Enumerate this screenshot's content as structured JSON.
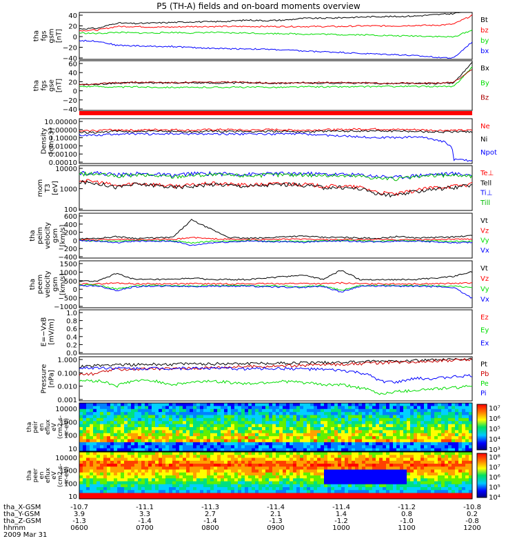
{
  "title": "P5 (TH-A) fields and on-board moments overview",
  "chart_data": {
    "type": "line",
    "x_axis": {
      "label_hhmm": "hhmm",
      "ticks_hhmm": [
        "0600",
        "0700",
        "0800",
        "0900",
        "1000",
        "1100",
        "1200"
      ],
      "rows": [
        {
          "label": "tha_X-GSM",
          "values": [
            "-10.7",
            "-11.1",
            "-11.3",
            "-11.4",
            "-11.4",
            "-11.2",
            "-10.8"
          ]
        },
        {
          "label": "tha_Y-GSM",
          "values": [
            "3.9",
            "3.3",
            "2.7",
            "2.1",
            "1.4",
            "0.8",
            "0.2"
          ]
        },
        {
          "label": "tha_Z-GSM",
          "values": [
            "-1.3",
            "-1.4",
            "-1.4",
            "-1.3",
            "-1.2",
            "-1.0",
            "-0.8"
          ]
        }
      ],
      "date": "2009 Mar 31"
    },
    "panels": [
      {
        "id": "fgs_gsm",
        "ylabel": [
          "tha",
          "fgs",
          "gsm",
          "[nT]"
        ],
        "ylim": [
          -40,
          40
        ],
        "yticks": [
          "40",
          "20",
          "0",
          "−20",
          "−40"
        ],
        "series": [
          {
            "name": "Bt",
            "color": "#000000",
            "values": [
              12,
              13,
              22,
              21,
              22,
              23,
              24,
              24,
              25,
              27,
              26,
              27,
              30,
              30,
              31,
              32,
              33,
              33,
              34,
              36,
              38,
              44
            ]
          },
          {
            "name": "bz",
            "color": "#ff0000",
            "values": [
              9,
              10,
              16,
              16,
              15,
              15,
              16,
              16,
              16,
              16,
              16,
              16,
              16,
              16,
              16,
              17,
              17,
              17,
              18,
              18,
              20,
              35
            ]
          },
          {
            "name": "by",
            "color": "#00dd00",
            "values": [
              5,
              4,
              6,
              5,
              5,
              6,
              5,
              6,
              5,
              5,
              4,
              4,
              3,
              3,
              2,
              2,
              1,
              0,
              0,
              -1,
              -2,
              10
            ]
          },
          {
            "name": "bx",
            "color": "#0000ff",
            "values": [
              -8,
              -9,
              -16,
              -17,
              -18,
              -18,
              -20,
              -21,
              -22,
              -22,
              -23,
              -24,
              -26,
              -27,
              -28,
              -30,
              -31,
              -32,
              -34,
              -36,
              -38,
              -10
            ]
          }
        ]
      },
      {
        "id": "fgs_gse",
        "ylabel": [
          "tha",
          "fgs",
          "gse",
          "[nT]"
        ],
        "ylim": [
          -60,
          60
        ],
        "yticks": [
          "60",
          "40",
          "20",
          "0",
          "−20",
          "−40"
        ],
        "series": [
          {
            "name": "Bx",
            "color": "#000000",
            "values": [
              2,
              3,
              6,
              7,
              6,
              7,
              7,
              6,
              6,
              7,
              6,
              6,
              6,
              6,
              6,
              6,
              5,
              5,
              5,
              5,
              6,
              55
            ]
          },
          {
            "name": "By",
            "color": "#00dd00",
            "values": [
              -2,
              -2,
              -4,
              -3,
              -4,
              -4,
              -5,
              -4,
              -4,
              -4,
              -4,
              -4,
              -3,
              -3,
              -3,
              -3,
              -2,
              -2,
              -2,
              -2,
              -3,
              45
            ]
          },
          {
            "name": "Bz",
            "color": "#aa0000",
            "values": [
              3,
              4,
              7,
              8,
              8,
              7,
              8,
              8,
              8,
              8,
              7,
              7,
              7,
              7,
              7,
              7,
              6,
              6,
              6,
              6,
              7,
              40
            ]
          }
        ]
      },
      {
        "id": "density",
        "ylabel": [
          "Density",
          "[cm−3]"
        ],
        "log": true,
        "ylim": [
          0.0001,
          10
        ],
        "yticks": [
          "10.00000",
          "1.00000",
          "0.10000",
          "0.01000",
          "0.00100",
          "0.00010"
        ],
        "series": [
          {
            "name": "Ne",
            "color": "#ff0000",
            "values": [
              0.4,
              0.5,
              0.6,
              0.5,
              0.6,
              0.6,
              0.5,
              0.6,
              0.6,
              0.5,
              0.6,
              0.6,
              0.5,
              0.6,
              0.6,
              0.7,
              0.7,
              0.6,
              0.6,
              0.5,
              0.5,
              0.5
            ]
          },
          {
            "name": "Ni",
            "color": "#000000",
            "values": [
              0.3,
              0.3,
              0.4,
              0.35,
              0.4,
              0.4,
              0.35,
              0.4,
              0.4,
              0.35,
              0.4,
              0.4,
              0.35,
              0.4,
              0.4,
              0.45,
              0.45,
              0.4,
              0.4,
              0.35,
              0.35,
              0.35
            ]
          },
          {
            "name": "Npot",
            "color": "#0000ff",
            "values": [
              0.15,
              0.15,
              0.2,
              0.2,
              0.2,
              0.2,
              0.2,
              0.2,
              0.2,
              0.2,
              0.2,
              0.2,
              0.2,
              0.15,
              0.12,
              0.1,
              0.08,
              0.08,
              0.1,
              0.05,
              0.0003,
              0.0002
            ]
          }
        ]
      },
      {
        "id": "temperature",
        "ylabel": [
          "mom",
          "T3",
          "[eV]"
        ],
        "log": true,
        "ylim": [
          30,
          10000
        ],
        "yticks": [
          "10000",
          "1000",
          "100"
        ],
        "series": [
          {
            "name": "Te⊥",
            "color": "#ff0000",
            "values": [
              1500,
              1200,
              700,
              1000,
              900,
              700,
              800,
              1000,
              900,
              800,
              900,
              1000,
              900,
              700,
              700,
              600,
              300,
              250,
              400,
              600,
              700,
              900
            ]
          },
          {
            "name": "Tell",
            "color": "#000000",
            "values": [
              1200,
              1000,
              600,
              900,
              800,
              600,
              700,
              900,
              800,
              700,
              800,
              900,
              800,
              600,
              600,
              500,
              250,
              200,
              350,
              500,
              600,
              800
            ]
          },
          {
            "name": "Ti⊥",
            "color": "#0000ff",
            "values": [
              4000,
              3800,
              3000,
              3500,
              3200,
              2800,
              3500,
              3600,
              3400,
              3200,
              3400,
              3600,
              3600,
              3300,
              3200,
              3000,
              2500,
              2200,
              2800,
              3300,
              3500,
              3000
            ]
          },
          {
            "name": "Till",
            "color": "#00bb00",
            "values": [
              3500,
              3300,
              2500,
              3000,
              2800,
              2400,
              3000,
              3100,
              2900,
              2800,
              3000,
              3100,
              3100,
              2900,
              2700,
              2600,
              2000,
              1800,
              2300,
              2800,
              3000,
              2500
            ]
          }
        ]
      },
      {
        "id": "peim_velocity",
        "ylabel": [
          "tha",
          "peim",
          "velocity",
          "gsm",
          "[km/s]"
        ],
        "ylim": [
          -400,
          600
        ],
        "yticks": [
          "600",
          "400",
          "200",
          "0",
          "−200",
          "−400"
        ],
        "series": [
          {
            "name": "Vt",
            "color": "#000000",
            "values": [
              30,
              40,
              80,
              40,
              50,
              60,
              450,
              250,
              60,
              40,
              50,
              80,
              90,
              60,
              60,
              50,
              40,
              80,
              50,
              60,
              70,
              100
            ]
          },
          {
            "name": "Vz",
            "color": "#ff0000",
            "values": [
              10,
              10,
              20,
              10,
              15,
              10,
              60,
              30,
              20,
              10,
              15,
              20,
              20,
              10,
              10,
              10,
              15,
              10,
              10,
              15,
              20,
              20
            ]
          },
          {
            "name": "Vy",
            "color": "#00dd00",
            "values": [
              -10,
              -20,
              -30,
              -10,
              -20,
              -10,
              -60,
              -30,
              -20,
              -10,
              -20,
              -20,
              -30,
              -10,
              -10,
              -10,
              -20,
              -10,
              -10,
              -20,
              -30,
              -20
            ]
          },
          {
            "name": "Vx",
            "color": "#0000ff",
            "values": [
              -10,
              -20,
              -60,
              -20,
              -30,
              -20,
              -120,
              -60,
              -40,
              -20,
              -30,
              -40,
              -50,
              -20,
              -20,
              -30,
              -40,
              -20,
              -20,
              -40,
              -60,
              -50
            ]
          }
        ]
      },
      {
        "id": "peem_velocity",
        "ylabel": [
          "tha",
          "peem",
          "velocity",
          "gsm",
          "[km/s]"
        ],
        "ylim": [
          -1500,
          1500
        ],
        "yticks": [
          "1500",
          "1000",
          "500",
          "0",
          "−500",
          "−1000"
        ],
        "series": [
          {
            "name": "Vt",
            "color": "#000000",
            "values": [
              200,
              200,
              700,
              300,
              300,
              300,
              400,
              300,
              300,
              300,
              400,
              500,
              600,
              300,
              900,
              300,
              300,
              300,
              300,
              400,
              500,
              800
            ]
          },
          {
            "name": "Vz",
            "color": "#ff0000",
            "values": [
              20,
              20,
              80,
              30,
              30,
              30,
              40,
              30,
              30,
              30,
              40,
              50,
              60,
              30,
              90,
              30,
              30,
              30,
              30,
              40,
              50,
              80
            ]
          },
          {
            "name": "Vy",
            "color": "#00dd00",
            "values": [
              -50,
              -50,
              -300,
              -100,
              -80,
              -80,
              -100,
              -80,
              -80,
              -80,
              -100,
              -120,
              -150,
              -80,
              -400,
              -80,
              -80,
              -80,
              -80,
              -100,
              -120,
              -200
            ]
          },
          {
            "name": "Vx",
            "color": "#0000ff",
            "values": [
              -100,
              -100,
              -400,
              -150,
              -120,
              -120,
              -150,
              -120,
              -120,
              -120,
              -150,
              -180,
              -200,
              -120,
              -500,
              -120,
              -120,
              -120,
              -120,
              -150,
              -200,
              -900
            ]
          }
        ]
      },
      {
        "id": "efield",
        "ylabel": [
          "E=−VxB",
          "[mV/m]"
        ],
        "ylim": [
          0,
          1
        ],
        "yticks": [
          "1.0",
          "0.8",
          "0.6",
          "0.4",
          "0.2",
          "0.0"
        ],
        "series": [
          {
            "name": "Ez",
            "color": "#ff0000",
            "values": []
          },
          {
            "name": "Ey",
            "color": "#00dd00",
            "values": []
          },
          {
            "name": "Ex",
            "color": "#0000ff",
            "values": []
          }
        ]
      },
      {
        "id": "pressure",
        "ylabel": [
          "Pressure",
          "[nPa]"
        ],
        "log": true,
        "ylim": [
          0.0006,
          1.3
        ],
        "yticks": [
          "1.000",
          "0.100",
          "0.010",
          "0.001"
        ],
        "series": [
          {
            "name": "Pt",
            "color": "#000000",
            "values": [
              0.25,
              0.28,
              0.35,
              0.33,
              0.35,
              0.36,
              0.38,
              0.38,
              0.4,
              0.42,
              0.42,
              0.44,
              0.46,
              0.48,
              0.5,
              0.55,
              0.6,
              0.65,
              0.7,
              0.75,
              0.8,
              0.85
            ]
          },
          {
            "name": "Pb",
            "color": "#cc0000",
            "values": [
              0.06,
              0.07,
              0.15,
              0.15,
              0.16,
              0.17,
              0.18,
              0.2,
              0.22,
              0.24,
              0.25,
              0.27,
              0.3,
              0.33,
              0.36,
              0.4,
              0.46,
              0.52,
              0.58,
              0.64,
              0.7,
              0.8
            ]
          },
          {
            "name": "Pe",
            "color": "#00dd00",
            "values": [
              0.02,
              0.02,
              0.008,
              0.02,
              0.02,
              0.01,
              0.015,
              0.02,
              0.015,
              0.012,
              0.015,
              0.018,
              0.015,
              0.01,
              0.01,
              0.006,
              0.002,
              0.003,
              0.004,
              0.005,
              0.006,
              0.008
            ]
          },
          {
            "name": "Pi",
            "color": "#0000ff",
            "values": [
              0.18,
              0.2,
              0.18,
              0.17,
              0.18,
              0.17,
              0.18,
              0.18,
              0.17,
              0.16,
              0.17,
              0.17,
              0.16,
              0.14,
              0.12,
              0.08,
              0.02,
              0.015,
              0.03,
              0.03,
              0.04,
              0.05
            ]
          }
        ]
      }
    ],
    "spectrograms": [
      {
        "id": "peir_eflux",
        "ylabel": [
          "tha",
          "peir",
          "en",
          "eflux",
          "eV",
          "(cm2-s-",
          "sr-eV)"
        ],
        "energy_ticks": [
          "10000",
          "1000",
          "100",
          "10"
        ],
        "colorbar_ticks": [
          "10⁷",
          "10⁶",
          "10⁵",
          "10⁴",
          "10³"
        ]
      },
      {
        "id": "peer_eflux",
        "ylabel": [
          "tha",
          "peer",
          "en",
          "eflux",
          "eV",
          "(cm2-s-",
          "sr-eV)"
        ],
        "energy_ticks": [
          "10000",
          "1000",
          "100",
          "10"
        ],
        "colorbar_ticks": [
          "10⁸",
          "10⁷",
          "10⁶",
          "10⁵",
          "10⁴"
        ]
      }
    ]
  }
}
